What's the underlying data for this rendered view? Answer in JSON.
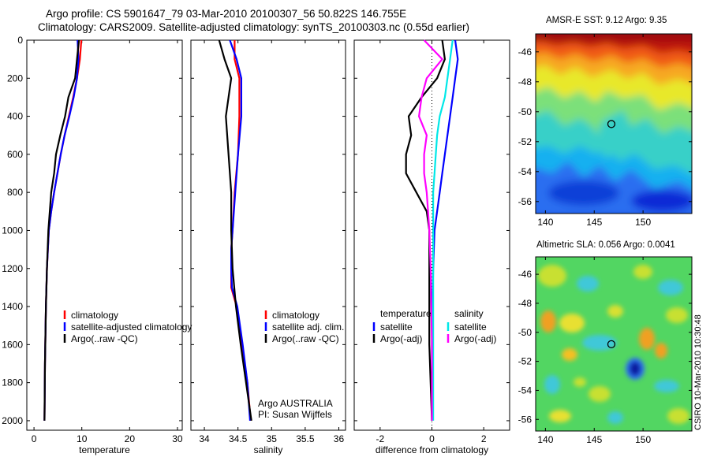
{
  "header": {
    "line1": "Argo profile: CS 5901647_79 03-Mar-2010 20100307_56 50.822S 146.755E",
    "line2": "Climatology: CARS2009. Satellite-adjusted climatology: synTS_20100303.nc (0.55d earlier)"
  },
  "colors": {
    "climatology": "#ff0000",
    "satellite": "#0000ff",
    "argo": "#000000",
    "sat_salt": "#00e8e8",
    "argo_salt": "#ff00ff"
  },
  "chart_data": [
    {
      "type": "line",
      "xlabel": "temperature",
      "xlim": [
        -1.5,
        31
      ],
      "xticks": [
        0,
        10,
        20,
        30
      ],
      "ylim": [
        0,
        2050
      ],
      "yticks": [
        0,
        200,
        400,
        600,
        800,
        1000,
        1200,
        1400,
        1600,
        1800,
        2000
      ],
      "y_reversed": true,
      "legend": [
        "climatology",
        "satellite-adjusted climatology",
        "Argo(..raw -QC)"
      ],
      "legend_loc": "lower-right",
      "series": [
        {
          "name": "climatology",
          "color": "#ff0000",
          "x": [
            9.9,
            9.6,
            9.0,
            8.2,
            7.3,
            6.4,
            5.6,
            4.9,
            4.2,
            3.6,
            3.1,
            2.7,
            2.5,
            2.3,
            2.2
          ],
          "y": [
            0,
            100,
            200,
            300,
            400,
            500,
            600,
            700,
            800,
            900,
            1000,
            1200,
            1400,
            1700,
            2000
          ]
        },
        {
          "name": "satellite-adjusted climatology",
          "color": "#0000ff",
          "x": [
            9.1,
            9.3,
            9.0,
            8.3,
            7.4,
            6.4,
            5.6,
            4.9,
            4.2,
            3.6,
            3.1,
            2.7,
            2.5,
            2.3,
            2.2
          ],
          "y": [
            0,
            100,
            200,
            300,
            400,
            500,
            600,
            700,
            800,
            900,
            1000,
            1200,
            1400,
            1700,
            2000
          ]
        },
        {
          "name": "Argo(..raw -QC)",
          "color": "#000000",
          "x": [
            9.4,
            9.0,
            8.6,
            7.2,
            6.5,
            5.5,
            4.6,
            4.2,
            3.6,
            3.3,
            3.0,
            2.7,
            2.5,
            2.3,
            2.2
          ],
          "y": [
            0,
            100,
            200,
            300,
            400,
            500,
            600,
            700,
            800,
            900,
            1000,
            1200,
            1400,
            1700,
            2000
          ]
        }
      ]
    },
    {
      "type": "line",
      "xlabel": "salinity",
      "xlim": [
        33.8,
        36.1
      ],
      "xticks": [
        34,
        34.5,
        35,
        35.5,
        36
      ],
      "ylim": [
        0,
        2050
      ],
      "y_reversed": true,
      "legend": [
        "climatology",
        "satellite adj. clim.",
        "Argo(..raw -QC)"
      ],
      "legend_loc": "lower-right",
      "annotations": [
        "Argo AUSTRALIA",
        "PI: Susan Wijffels"
      ],
      "series": [
        {
          "name": "climatology",
          "color": "#ff0000",
          "x": [
            34.45,
            34.45,
            34.52,
            34.52,
            34.5,
            34.45,
            34.42,
            34.4,
            34.4,
            34.4,
            34.48,
            34.56,
            34.64,
            34.69
          ],
          "y": [
            0,
            100,
            200,
            400,
            600,
            800,
            1000,
            1100,
            1200,
            1300,
            1400,
            1600,
            1800,
            2000
          ]
        },
        {
          "name": "satellite adj. clim.",
          "color": "#0000ff",
          "x": [
            34.38,
            34.48,
            34.55,
            34.55,
            34.5,
            34.46,
            34.42,
            34.4,
            34.4,
            34.41,
            34.49,
            34.57,
            34.64,
            34.68
          ],
          "y": [
            0,
            100,
            200,
            400,
            600,
            800,
            1000,
            1100,
            1200,
            1300,
            1400,
            1600,
            1800,
            2000
          ]
        },
        {
          "name": "Argo(..raw -QC)",
          "color": "#000000",
          "x": [
            34.22,
            34.3,
            34.4,
            34.32,
            34.36,
            34.4,
            34.4,
            34.42,
            34.47,
            34.54,
            34.62,
            34.68,
            34.7
          ],
          "y": [
            0,
            100,
            200,
            400,
            600,
            800,
            1000,
            1200,
            1400,
            1600,
            1800,
            1950,
            2000
          ]
        }
      ]
    },
    {
      "type": "line",
      "xlabel": "difference from climatology",
      "xlim": [
        -3,
        3
      ],
      "xticks": [
        -2,
        0,
        2
      ],
      "ylim": [
        0,
        2050
      ],
      "y_reversed": true,
      "legend_groups": [
        {
          "title": "temperature",
          "entries": [
            "satellite",
            "Argo(-adj)"
          ]
        },
        {
          "title": "salinity",
          "entries": [
            "satellite",
            "Argo(-adj)"
          ]
        }
      ],
      "legend_loc": "lower",
      "series": [
        {
          "name": "satellite",
          "group": "temperature",
          "color": "#0000ff",
          "x": [
            0.9,
            1.0,
            0.9,
            0.8,
            0.7,
            0.6,
            0.5,
            0.4,
            0.3,
            0.2,
            0.1,
            0.05,
            0.0,
            0.0
          ],
          "y": [
            0,
            100,
            200,
            300,
            400,
            500,
            600,
            700,
            800,
            900,
            1000,
            1200,
            1600,
            2000
          ]
        },
        {
          "name": "Argo(-adj)",
          "group": "temperature",
          "color": "#000000",
          "x": [
            0.4,
            0.5,
            0.2,
            -0.4,
            -0.9,
            -0.8,
            -1.0,
            -1.0,
            -0.6,
            -0.2,
            -0.1,
            -0.1,
            -0.1,
            0.0
          ],
          "y": [
            0,
            100,
            200,
            300,
            400,
            500,
            600,
            700,
            800,
            900,
            1000,
            1200,
            1600,
            2000
          ]
        },
        {
          "name": "satellite",
          "group": "salinity",
          "color": "#00e8e8",
          "x": [
            0.8,
            0.7,
            0.6,
            0.5,
            0.3,
            0.2,
            0.15,
            0.1,
            0.05,
            0.05,
            0.05,
            0.05,
            0.05,
            0.05
          ],
          "y": [
            0,
            100,
            200,
            300,
            400,
            500,
            600,
            700,
            800,
            900,
            1000,
            1200,
            1600,
            2000
          ]
        },
        {
          "name": "Argo(-adj)",
          "group": "salinity",
          "color": "#ff00ff",
          "x": [
            -0.3,
            0.4,
            -0.2,
            -0.4,
            -0.5,
            -0.2,
            -0.3,
            -0.3,
            -0.2,
            -0.15,
            -0.1,
            -0.05,
            0.0,
            0.0
          ],
          "y": [
            0,
            100,
            200,
            300,
            400,
            500,
            600,
            700,
            800,
            900,
            1000,
            1200,
            1600,
            2000
          ]
        }
      ]
    },
    {
      "type": "heatmap",
      "title": "AMSR-E SST: 9.12 Argo: 9.35",
      "xlim": [
        139,
        155
      ],
      "xticks": [
        140,
        145,
        150
      ],
      "ylim": [
        -56.8,
        -44.8
      ],
      "yticks": [
        -46,
        -48,
        -50,
        -52,
        -54,
        -56
      ],
      "argo_point": [
        146.755,
        -50.822
      ]
    },
    {
      "type": "heatmap",
      "title": "Altimetric SLA: 0.056 Argo: 0.0041",
      "xlim": [
        139,
        155
      ],
      "xticks": [
        140,
        145,
        150
      ],
      "ylim": [
        -56.8,
        -44.8
      ],
      "yticks": [
        -46,
        -48,
        -50,
        -52,
        -54,
        -56
      ],
      "argo_point": [
        146.755,
        -50.822
      ]
    }
  ],
  "footer": {
    "stamp": "CSIRO 10-Mar-2010 10:30:48"
  }
}
